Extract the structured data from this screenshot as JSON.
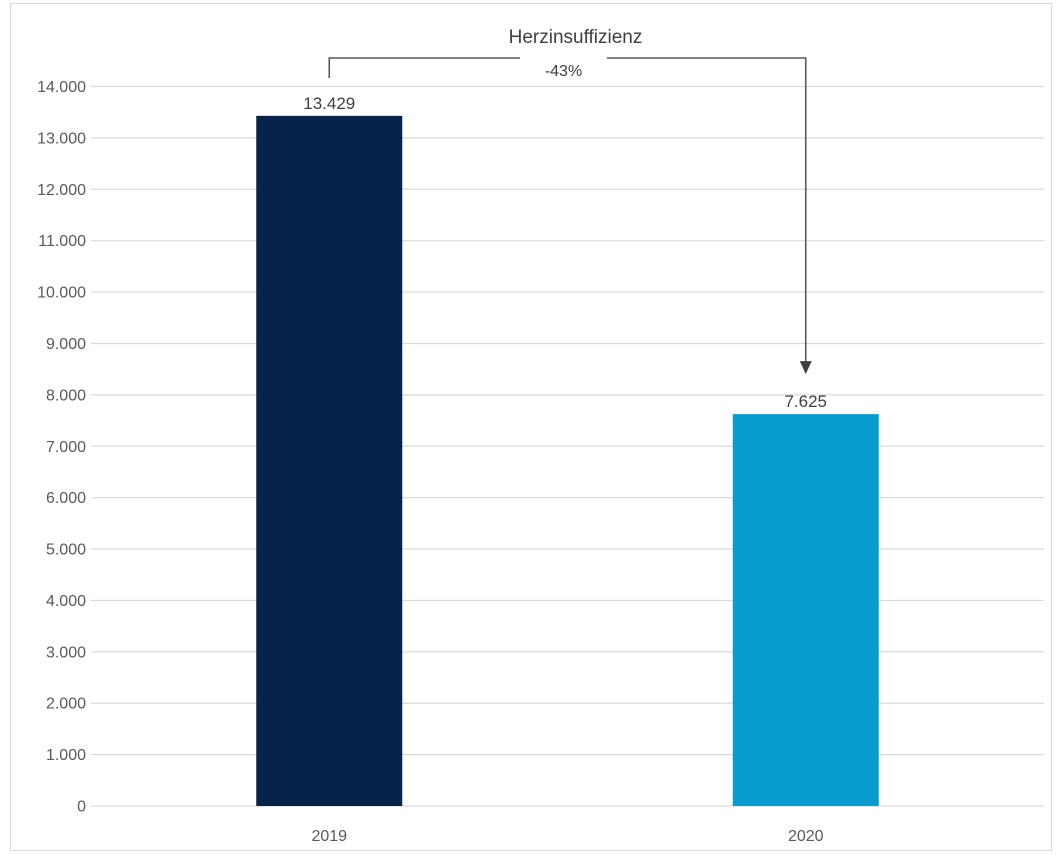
{
  "chart_data": {
    "type": "bar",
    "title": "",
    "xlabel": "",
    "ylabel": "",
    "categories": [
      "2019",
      "2020"
    ],
    "values": [
      13429,
      7625
    ],
    "value_labels": [
      "13.429",
      "7.625"
    ],
    "bar_colors": [
      "#08234a",
      "#099ccf"
    ],
    "ylim": [
      0,
      14000
    ],
    "ytick_step": 1000,
    "ytick_labels": [
      "0",
      "1.000",
      "2.000",
      "3.000",
      "4.000",
      "5.000",
      "6.000",
      "7.000",
      "8.000",
      "9.000",
      "10.000",
      "11.000",
      "12.000",
      "13.000",
      "14.000"
    ],
    "grid": true,
    "legend": "none",
    "annotation": {
      "title": "Herzinsuffizienz",
      "change_label": "-43%",
      "from": "2019",
      "to": "2020"
    }
  }
}
